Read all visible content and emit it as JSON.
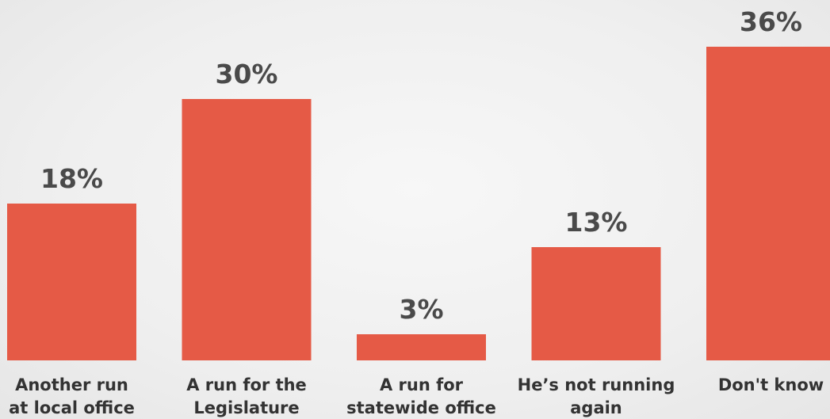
{
  "chart_data": {
    "type": "bar",
    "categories": [
      [
        "Another run",
        "at local office"
      ],
      [
        "A run for the",
        "Legislature"
      ],
      [
        "A run for",
        "statewide office"
      ],
      [
        "He’s not running",
        "again"
      ],
      [
        "Don't know"
      ]
    ],
    "values": [
      18,
      30,
      3,
      13,
      36
    ],
    "value_labels": [
      "18%",
      "30%",
      "3%",
      "13%",
      "36%"
    ],
    "ylim": [
      0,
      36
    ],
    "grid": false,
    "legend": "none",
    "bar_color": "#e55a46"
  }
}
